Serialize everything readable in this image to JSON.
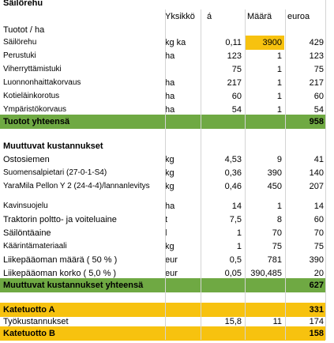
{
  "title": "Säilörehu",
  "headers": {
    "unit": "Yksikkö",
    "price": "á",
    "qty": "Määrä",
    "eur": "euroa"
  },
  "section_income": "Tuotot / ha",
  "income_rows": [
    {
      "name": "Säilörehu",
      "unit": "kg ka",
      "price": "0,11",
      "qty": "3900",
      "eur": "429"
    },
    {
      "name": "Perustuki",
      "unit": "ha",
      "price": "123",
      "qty": "1",
      "eur": "123"
    },
    {
      "name": "Viherryttämistuki",
      "unit": "",
      "price": "75",
      "qty": "1",
      "eur": "75"
    },
    {
      "name": "Luonnonhaittakorvaus",
      "unit": "ha",
      "price": "217",
      "qty": "1",
      "eur": "217"
    },
    {
      "name": "Kotieläinkorotus",
      "unit": "ha",
      "price": "60",
      "qty": "1",
      "eur": "60"
    },
    {
      "name": "Ympäristökorvaus",
      "unit": "ha",
      "price": "54",
      "qty": "1",
      "eur": "54"
    }
  ],
  "income_total": {
    "label": "Tuotot yhteensä",
    "eur": "958"
  },
  "section_costs": "Muuttuvat kustannukset",
  "cost_rows_a": [
    {
      "name": "Ostosiemen",
      "unit": "kg",
      "price": "4,53",
      "qty": "9",
      "eur": "41"
    },
    {
      "name": "Suomensalpietari (27-0-1-S4)",
      "unit": "kg",
      "price": "0,36",
      "qty": "390",
      "eur": "140"
    },
    {
      "name": "YaraMila Pellon Y 2 (24-4-4)/lannanlevitys",
      "unit": "kg",
      "price": "0,46",
      "qty": "450",
      "eur": "207"
    }
  ],
  "cost_rows_b": [
    {
      "name": "Kavinsuojelu",
      "unit": "ha",
      "price": "14",
      "qty": "1",
      "eur": "14"
    },
    {
      "name": "Traktorin poltto- ja voiteluaine",
      "unit": "t",
      "price": "7,5",
      "qty": "8",
      "eur": "60"
    },
    {
      "name": "Säilöntäaine",
      "unit": "l",
      "price": "1",
      "qty": "70",
      "eur": "70"
    },
    {
      "name": "Käärintämateriaali",
      "unit": "kg",
      "price": "1",
      "qty": "75",
      "eur": "75"
    },
    {
      "name": "Liikepääoman määrä ( 50 % )",
      "unit": "eur",
      "price": "0,5",
      "qty": "781",
      "eur": "390"
    },
    {
      "name": "Liikepääoman korko ( 5,0 % )",
      "unit": "eur",
      "price": "0,05",
      "qty": "390,485",
      "eur": "20"
    }
  ],
  "cost_total": {
    "label": "Muuttuvat kustannukset yhteensä",
    "eur": "627"
  },
  "margin_a": {
    "label": "Katetuotto A",
    "eur": "331"
  },
  "labour": {
    "name": "Työkustannukset",
    "price": "15,8",
    "qty": "11",
    "eur": "174"
  },
  "margin_b": {
    "label": "Katetuotto B",
    "eur": "158"
  },
  "colors": {
    "green": "#6fa943",
    "yellow": "#f7c20f"
  }
}
